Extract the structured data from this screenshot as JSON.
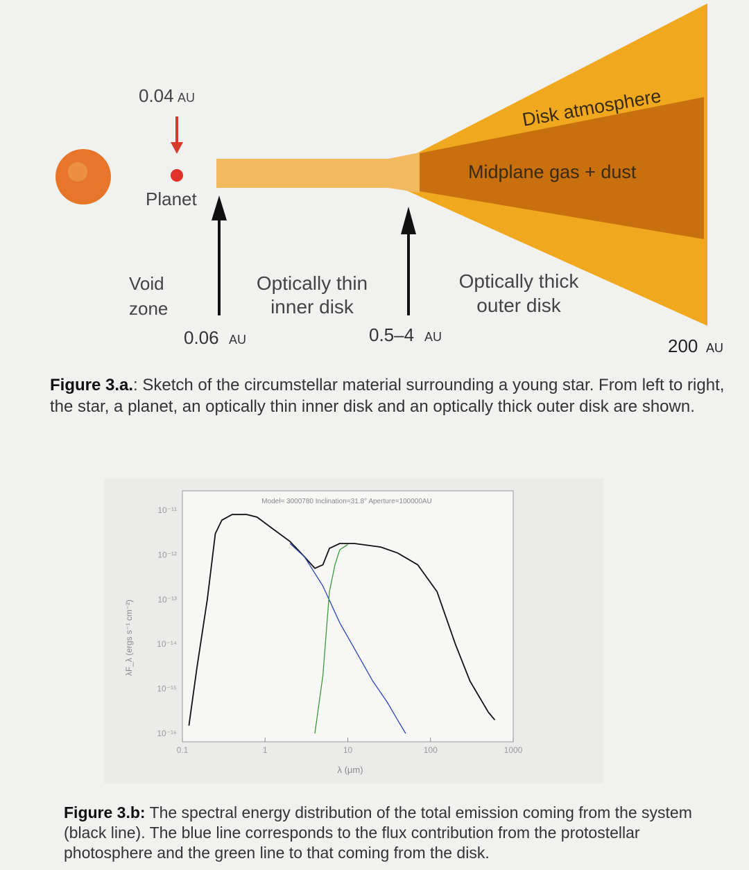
{
  "sketch": {
    "planet_distance": "0.04",
    "planet_distance_unit": "AU",
    "planet_label": "Planet",
    "void_zone_line1": "Void",
    "void_zone_line2": "zone",
    "inner_disk_line1": "Optically thin",
    "inner_disk_line2": "inner disk",
    "outer_disk_line1": "Optically thick",
    "outer_disk_line2": "outer disk",
    "disk_atmosphere": "Disk atmosphere",
    "midplane": "Midplane gas + dust",
    "inner_edge": "0.06",
    "inner_edge_unit": "AU",
    "transition": "0.5–4",
    "transition_unit": "AU",
    "outer_edge": "200",
    "outer_edge_unit": "AU",
    "colors": {
      "star": "#e8762a",
      "disk_outer": "#f0a81e",
      "midplane": "#c8700e",
      "arrow": "#111111",
      "planet": "#e0312a"
    }
  },
  "caption_a": {
    "label": "Figure 3.a.",
    "text": ": Sketch of the circumstellar material surrounding a young star. From left to right, the star, a planet, an optically thin inner disk and an optically thick outer disk are shown."
  },
  "chart_data": {
    "type": "line",
    "header": "Model= 3000780  Inclination=31.8°  Aperture=100000AU",
    "xlabel": "λ (μm)",
    "ylabel": "λF_λ (ergs s⁻¹ cm⁻²)",
    "x_scale": "log",
    "y_scale": "log",
    "xlim": [
      0.1,
      1000
    ],
    "ylim": [
      1e-16,
      1e-11
    ],
    "x_ticks": [
      "0.1",
      "1",
      "10",
      "100",
      "1000"
    ],
    "y_ticks": [
      "10⁻¹¹",
      "10⁻¹²",
      "10⁻¹³",
      "10⁻¹⁴",
      "10⁻¹⁵",
      "10⁻¹⁶"
    ],
    "series": [
      {
        "color": "#111111",
        "points": [
          [
            0.12,
            1.5e-16
          ],
          [
            0.15,
            3e-15
          ],
          [
            0.2,
            1e-13
          ],
          [
            0.25,
            3e-12
          ],
          [
            0.3,
            6e-12
          ],
          [
            0.4,
            8e-12
          ],
          [
            0.6,
            8e-12
          ],
          [
            0.8,
            7e-12
          ],
          [
            1.2,
            4e-12
          ],
          [
            2,
            2e-12
          ],
          [
            3,
            9e-13
          ],
          [
            4,
            5e-13
          ],
          [
            5,
            6e-13
          ],
          [
            6,
            1.4e-12
          ],
          [
            8,
            1.8e-12
          ],
          [
            12,
            1.8e-12
          ],
          [
            25,
            1.5e-12
          ],
          [
            40,
            1.1e-12
          ],
          [
            70,
            6e-13
          ],
          [
            120,
            1.5e-13
          ],
          [
            200,
            1e-14
          ],
          [
            300,
            1.5e-15
          ],
          [
            500,
            3e-16
          ],
          [
            600,
            2e-16
          ]
        ]
      },
      {
        "color": "#2a45b8",
        "points": [
          [
            2,
            1.8e-12
          ],
          [
            3,
            9e-13
          ],
          [
            5,
            2e-13
          ],
          [
            8,
            3e-14
          ],
          [
            12,
            8e-15
          ],
          [
            20,
            1.5e-15
          ],
          [
            30,
            5e-16
          ],
          [
            40,
            2e-16
          ],
          [
            50,
            1e-16
          ]
        ]
      },
      {
        "color": "#3a9a3a",
        "points": [
          [
            4,
            1e-16
          ],
          [
            5,
            2e-15
          ],
          [
            6,
            1.5e-13
          ],
          [
            7,
            6e-13
          ],
          [
            8,
            1.3e-12
          ],
          [
            10,
            1.7e-12
          ]
        ]
      }
    ]
  },
  "caption_b": {
    "label": "Figure 3.b:",
    "text": " The spectral energy distribution of the total emission coming from the system (black line). The blue line corresponds to the flux contribution from the protostellar photosphere and the green line to that coming from the disk."
  }
}
